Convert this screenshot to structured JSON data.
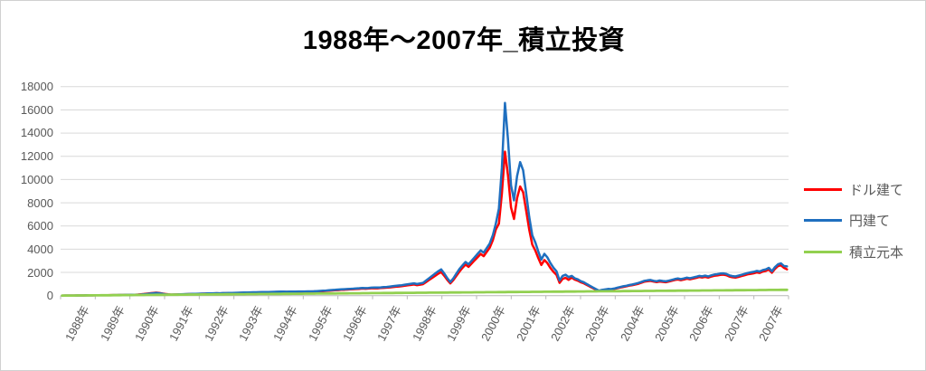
{
  "chart_data": {
    "type": "line",
    "title": "1988年〜2007年_積立投資",
    "grid": "horizontal",
    "legend_position": "right",
    "x_axis": {
      "labels": [
        "1988年",
        "1989年",
        "1990年",
        "1991年",
        "1992年",
        "1993年",
        "1994年",
        "1995年",
        "1996年",
        "1997年",
        "1998年",
        "1999年",
        "2000年",
        "2001年",
        "2002年",
        "2003年",
        "2004年",
        "2005年",
        "2006年",
        "2007年",
        "2007年"
      ],
      "points_per_year": 12,
      "total_points": 240
    },
    "y_axis": {
      "min": 0,
      "max": 18000,
      "step": 2000,
      "tick_labels": [
        "18000",
        "16000",
        "14000",
        "12000",
        "10000",
        "8000",
        "6000",
        "4000",
        "2000",
        "0"
      ]
    },
    "series": [
      {
        "name": "ドル建て",
        "color": "#ff0000",
        "values": [
          2,
          4,
          7,
          9,
          11,
          14,
          16,
          18,
          21,
          23,
          26,
          29,
          31,
          34,
          37,
          39,
          43,
          46,
          49,
          53,
          57,
          61,
          65,
          69,
          80,
          95,
          115,
          140,
          170,
          200,
          235,
          260,
          230,
          185,
          140,
          110,
          82,
          90,
          100,
          110,
          120,
          126,
          135,
          143,
          150,
          156,
          163,
          170,
          178,
          187,
          192,
          200,
          196,
          205,
          210,
          217,
          224,
          228,
          236,
          242,
          250,
          257,
          264,
          270,
          275,
          282,
          288,
          293,
          298,
          304,
          310,
          316,
          322,
          326,
          320,
          326,
          332,
          328,
          334,
          339,
          337,
          343,
          348,
          355,
          362,
          375,
          388,
          406,
          424,
          442,
          460,
          478,
          496,
          510,
          523,
          537,
          552,
          570,
          588,
          607,
          593,
          611,
          629,
          643,
          633,
          652,
          670,
          688,
          710,
          737,
          763,
          790,
          816,
          852,
          887,
          922,
          957,
          903,
          947,
          991,
          1170,
          1350,
          1530,
          1710,
          1890,
          2030,
          1710,
          1350,
          1055,
          1350,
          1710,
          2070,
          2390,
          2670,
          2480,
          2760,
          3040,
          3310,
          3590,
          3400,
          3770,
          4140,
          4780,
          5700,
          6200,
          8800,
          12400,
          10400,
          7600,
          6600,
          8400,
          9400,
          8900,
          7300,
          5700,
          4400,
          3900,
          3230,
          2640,
          3060,
          2800,
          2380,
          2040,
          1790,
          1100,
          1445,
          1530,
          1360,
          1560,
          1380,
          1290,
          1150,
          1060,
          920,
          780,
          645,
          515,
          395,
          460,
          500,
          545,
          525,
          573,
          640,
          695,
          750,
          800,
          855,
          900,
          960,
          1025,
          1110,
          1205,
          1240,
          1270,
          1205,
          1165,
          1220,
          1185,
          1155,
          1210,
          1280,
          1345,
          1390,
          1335,
          1390,
          1455,
          1410,
          1465,
          1520,
          1600,
          1560,
          1615,
          1550,
          1645,
          1710,
          1740,
          1785,
          1805,
          1760,
          1645,
          1580,
          1550,
          1615,
          1680,
          1755,
          1835,
          1880,
          1925,
          2000,
          1955,
          2070,
          2125,
          2245,
          1975,
          2300,
          2540,
          2610,
          2395,
          2260
        ]
      },
      {
        "name": "円建て",
        "color": "#1f6fbf",
        "values": [
          2,
          4,
          6,
          9,
          11,
          13,
          15,
          18,
          20,
          22,
          25,
          28,
          30,
          33,
          36,
          38,
          42,
          45,
          48,
          52,
          56,
          60,
          64,
          68,
          72,
          80,
          95,
          115,
          140,
          170,
          200,
          230,
          200,
          160,
          120,
          95,
          85,
          95,
          105,
          115,
          125,
          130,
          140,
          148,
          155,
          160,
          168,
          175,
          185,
          195,
          200,
          210,
          205,
          215,
          220,
          228,
          235,
          240,
          248,
          255,
          262,
          270,
          278,
          285,
          290,
          298,
          305,
          310,
          315,
          322,
          328,
          335,
          340,
          345,
          338,
          345,
          352,
          348,
          355,
          360,
          358,
          365,
          370,
          378,
          390,
          405,
          420,
          440,
          460,
          480,
          500,
          520,
          540,
          555,
          570,
          585,
          600,
          620,
          640,
          660,
          645,
          665,
          685,
          700,
          690,
          710,
          730,
          750,
          780,
          810,
          840,
          870,
          900,
          940,
          980,
          1020,
          1060,
          1000,
          1050,
          1100,
          1300,
          1500,
          1700,
          1900,
          2100,
          2260,
          1900,
          1500,
          1170,
          1500,
          1900,
          2300,
          2600,
          2900,
          2700,
          3000,
          3300,
          3600,
          3900,
          3700,
          4100,
          4500,
          5200,
          6200,
          7500,
          11000,
          16600,
          13500,
          9500,
          8200,
          10300,
          11500,
          10800,
          8800,
          6800,
          5200,
          4600,
          3800,
          3100,
          3600,
          3300,
          2800,
          2400,
          2100,
          1300,
          1700,
          1800,
          1600,
          1700,
          1500,
          1400,
          1250,
          1150,
          1000,
          850,
          700,
          560,
          430,
          500,
          540,
          580,
          560,
          610,
          680,
          740,
          800,
          850,
          910,
          960,
          1020,
          1090,
          1180,
          1280,
          1320,
          1350,
          1280,
          1240,
          1300,
          1260,
          1230,
          1290,
          1360,
          1430,
          1480,
          1420,
          1480,
          1550,
          1500,
          1560,
          1620,
          1700,
          1660,
          1720,
          1650,
          1750,
          1820,
          1850,
          1900,
          1920,
          1870,
          1750,
          1680,
          1650,
          1720,
          1790,
          1870,
          1950,
          2000,
          2050,
          2130,
          2080,
          2200,
          2260,
          2390,
          2100,
          2450,
          2700,
          2780,
          2550,
          2520
        ]
      },
      {
        "name": "積立元本",
        "color": "#92d050",
        "values": [
          2,
          4,
          6,
          8,
          10,
          13,
          15,
          17,
          19,
          21,
          23,
          25,
          27,
          29,
          31,
          33,
          35,
          38,
          40,
          42,
          44,
          46,
          48,
          50,
          52,
          54,
          56,
          58,
          60,
          63,
          65,
          67,
          69,
          71,
          73,
          75,
          77,
          79,
          81,
          83,
          85,
          88,
          90,
          92,
          94,
          96,
          98,
          100,
          102,
          104,
          106,
          108,
          110,
          113,
          115,
          117,
          119,
          121,
          123,
          125,
          127,
          129,
          131,
          133,
          135,
          138,
          140,
          142,
          144,
          146,
          148,
          150,
          152,
          154,
          156,
          158,
          160,
          163,
          165,
          167,
          169,
          171,
          173,
          175,
          177,
          179,
          181,
          183,
          185,
          188,
          190,
          192,
          194,
          196,
          198,
          200,
          202,
          204,
          206,
          208,
          210,
          213,
          215,
          217,
          219,
          221,
          223,
          225,
          227,
          229,
          231,
          233,
          235,
          238,
          240,
          242,
          244,
          246,
          248,
          250,
          252,
          254,
          256,
          258,
          260,
          263,
          265,
          267,
          269,
          271,
          273,
          275,
          277,
          279,
          281,
          283,
          285,
          288,
          290,
          292,
          294,
          296,
          298,
          300,
          302,
          304,
          306,
          308,
          310,
          313,
          315,
          317,
          319,
          321,
          323,
          325,
          327,
          329,
          331,
          333,
          335,
          338,
          340,
          342,
          344,
          346,
          348,
          350,
          352,
          354,
          356,
          358,
          360,
          363,
          365,
          367,
          369,
          371,
          373,
          375,
          377,
          379,
          381,
          383,
          385,
          388,
          390,
          392,
          394,
          396,
          398,
          400,
          402,
          404,
          406,
          408,
          410,
          413,
          415,
          417,
          419,
          421,
          423,
          425,
          427,
          429,
          431,
          433,
          435,
          438,
          440,
          442,
          444,
          446,
          448,
          450,
          452,
          454,
          456,
          458,
          460,
          463,
          465,
          467,
          469,
          471,
          473,
          475,
          477,
          479,
          481,
          483,
          485,
          488,
          490,
          492,
          494,
          496,
          498,
          500
        ]
      }
    ]
  }
}
